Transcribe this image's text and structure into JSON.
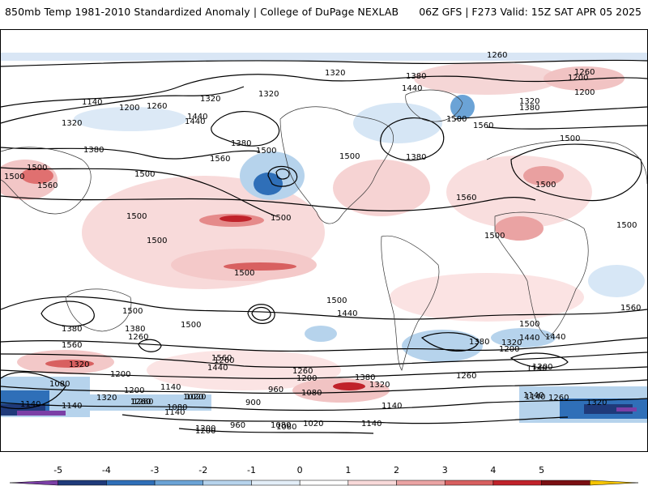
{
  "header": {
    "title_left": "850mb Temp 1981-2010 Standardized Anomaly | College of DuPage NEXLAB",
    "title_right": "06Z GFS | F273 Valid: 15Z SAT APR 05 2025"
  },
  "colorbar": {
    "ticks": [
      "-5",
      "-4",
      "-3",
      "-2",
      "-1",
      "0",
      "1",
      "2",
      "3",
      "4",
      "5"
    ],
    "colors": [
      "#7b3fa6",
      "#1f3a7a",
      "#2f6fb8",
      "#6ba3d6",
      "#b6d3ec",
      "#e3eef8",
      "#ffffff",
      "#f8d9d9",
      "#eaa3a3",
      "#d86060",
      "#c0222a",
      "#7a0f12",
      "#f5c400"
    ]
  },
  "contour_labels": [
    "1260",
    "1320",
    "1380",
    "1260",
    "1200",
    "1320",
    "1380",
    "1140",
    "1200",
    "1260",
    "1320",
    "1320",
    "1440",
    "1500",
    "1560",
    "1380",
    "1440",
    "1500",
    "1380",
    "1500",
    "1560",
    "1500",
    "1500",
    "1500",
    "1560",
    "1500",
    "1500",
    "1500",
    "1500",
    "1500",
    "1560",
    "1500",
    "1500",
    "1500",
    "1500",
    "1440",
    "1380",
    "1260",
    "1500",
    "1500",
    "1560",
    "1440",
    "1560",
    "1320",
    "1200",
    "1080",
    "1140",
    "1260",
    "1320",
    "1140",
    "1200",
    "1260",
    "1260",
    "1200",
    "1380",
    "1320",
    "1080",
    "1140",
    "1260",
    "1200",
    "1140",
    "1080",
    "1020",
    "960",
    "900",
    "1080",
    "1020",
    "1140",
    "1140",
    "1200",
    "1260",
    "1320",
    "1440",
    "1380",
    "1320",
    "1200",
    "1140",
    "1260",
    "1380",
    "1440",
    "1560",
    "1500",
    "1440",
    "1380",
    "1320",
    "1200",
    "1260",
    "1020",
    "960",
    "1080",
    "1200",
    "1140",
    "1140"
  ]
}
